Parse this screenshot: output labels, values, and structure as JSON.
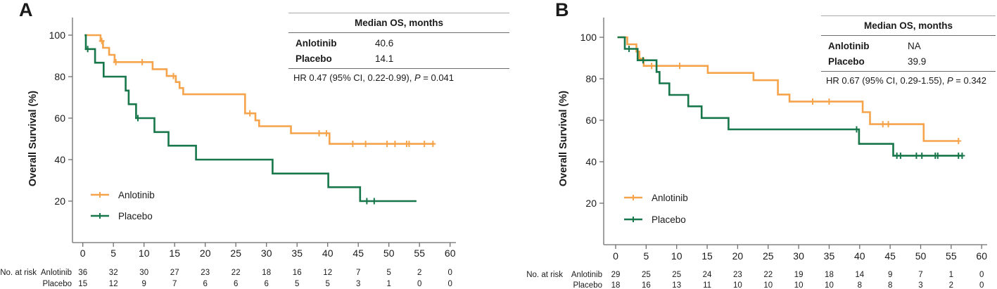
{
  "chart_data": [
    {
      "type": "line",
      "subtype": "kaplan-meier-step",
      "panel_label": "A",
      "xlabel": "",
      "ylabel": "Overall Survival (%)",
      "xlim": [
        0,
        60
      ],
      "ylim": [
        0,
        108
      ],
      "grid": false,
      "legend_position": "lower-left",
      "x_ticks": [
        0,
        5,
        10,
        15,
        20,
        25,
        30,
        35,
        40,
        45,
        50,
        55,
        60
      ],
      "y_ticks": [
        20,
        40,
        60,
        80,
        100
      ],
      "stats_table": {
        "header": "Median OS, months"
      },
      "hr_annotation": {
        "plain": "HR 0.47 (95% CI, 0.22-0.99), ",
        "italic": "P",
        "tail": " = 0.041"
      },
      "at_risk_label": "No. at risk",
      "series": [
        {
          "name": "Anlotinib",
          "color": "#F5A44C",
          "median_os_months": "40.6",
          "step_points": [
            [
              0.3,
              100
            ],
            [
              2.9,
              100
            ],
            [
              2.9,
              97.2
            ],
            [
              3.3,
              97.2
            ],
            [
              3.3,
              93.9
            ],
            [
              4.3,
              93.9
            ],
            [
              4.3,
              90.5
            ],
            [
              5.2,
              90.5
            ],
            [
              5.2,
              87
            ],
            [
              11.4,
              87
            ],
            [
              11.4,
              83.6
            ],
            [
              13.7,
              83.6
            ],
            [
              13.7,
              80.3
            ],
            [
              15.2,
              80.3
            ],
            [
              15.2,
              77.4
            ],
            [
              15.8,
              77.4
            ],
            [
              15.8,
              74.5
            ],
            [
              16.4,
              74.5
            ],
            [
              16.4,
              71.5
            ],
            [
              26.5,
              71.5
            ],
            [
              26.5,
              62.3
            ],
            [
              28.2,
              62.3
            ],
            [
              28.2,
              58.9
            ],
            [
              28.8,
              58.9
            ],
            [
              28.8,
              56.1
            ],
            [
              34,
              56.1
            ],
            [
              34,
              52.7
            ],
            [
              40.3,
              52.7
            ],
            [
              40.3,
              47.6
            ],
            [
              57.4,
              47.6
            ]
          ],
          "censor_marks": [
            [
              3.1,
              97.2
            ],
            [
              5.4,
              87
            ],
            [
              9.7,
              87
            ],
            [
              14.8,
              80.3
            ],
            [
              27.3,
              62.3
            ],
            [
              38.6,
              52.7
            ],
            [
              39.8,
              52.7
            ],
            [
              44.1,
              47.6
            ],
            [
              46.2,
              47.6
            ],
            [
              49.7,
              47.6
            ],
            [
              51,
              47.6
            ],
            [
              52.9,
              47.6
            ],
            [
              53.3,
              47.6
            ],
            [
              55.8,
              47.6
            ],
            [
              57.2,
              47.6
            ]
          ],
          "at_risk_counts": [
            36,
            32,
            30,
            27,
            23,
            22,
            18,
            16,
            12,
            7,
            5,
            2,
            0
          ]
        },
        {
          "name": "Placebo",
          "color": "#17764A",
          "median_os_months": "14.1",
          "step_points": [
            [
              0.3,
              100
            ],
            [
              0.5,
              100
            ],
            [
              0.5,
              93.3
            ],
            [
              2,
              93.3
            ],
            [
              2,
              86.7
            ],
            [
              3.4,
              86.7
            ],
            [
              3.4,
              80
            ],
            [
              7,
              80
            ],
            [
              7,
              73.3
            ],
            [
              7.5,
              73.3
            ],
            [
              7.5,
              66.7
            ],
            [
              8.7,
              66.7
            ],
            [
              8.7,
              60
            ],
            [
              11.7,
              60
            ],
            [
              11.7,
              53.3
            ],
            [
              14,
              53.3
            ],
            [
              14,
              46.7
            ],
            [
              18.5,
              46.7
            ],
            [
              18.5,
              40
            ],
            [
              31,
              40
            ],
            [
              31,
              33.3
            ],
            [
              40.1,
              33.3
            ],
            [
              40.1,
              26.7
            ],
            [
              45.3,
              26.7
            ],
            [
              45.3,
              20
            ],
            [
              54.5,
              20
            ]
          ],
          "censor_marks": [
            [
              0.8,
              93.3
            ],
            [
              9,
              60
            ],
            [
              46.4,
              20
            ],
            [
              47.6,
              20
            ]
          ],
          "at_risk_counts": [
            15,
            12,
            9,
            7,
            6,
            6,
            6,
            5,
            5,
            3,
            1,
            0,
            0
          ]
        }
      ]
    },
    {
      "type": "line",
      "subtype": "kaplan-meier-step",
      "panel_label": "B",
      "xlabel": "",
      "ylabel": "Overall Survival (%)",
      "xlim": [
        0,
        60
      ],
      "ylim": [
        0,
        108
      ],
      "grid": false,
      "legend_position": "lower-left",
      "x_ticks": [
        0,
        5,
        10,
        15,
        20,
        25,
        30,
        35,
        40,
        45,
        50,
        55,
        60
      ],
      "y_ticks": [
        20,
        40,
        60,
        80,
        100
      ],
      "stats_table": {
        "header": "Median OS, months"
      },
      "hr_annotation": {
        "plain": "HR 0.67 (95% CI, 0.29-1.55), ",
        "italic": "P",
        "tail": " = 0.342"
      },
      "at_risk_label": "No. at risk",
      "series": [
        {
          "name": "Anlotinib",
          "color": "#F5A44C",
          "median_os_months": "NA",
          "step_points": [
            [
              0.3,
              100
            ],
            [
              1.9,
              100
            ],
            [
              1.9,
              96.6
            ],
            [
              3.4,
              96.6
            ],
            [
              3.4,
              93.1
            ],
            [
              3.9,
              93.1
            ],
            [
              3.9,
              89.7
            ],
            [
              4.6,
              89.7
            ],
            [
              4.6,
              86.2
            ],
            [
              15.1,
              86.2
            ],
            [
              15.1,
              82.8
            ],
            [
              22.6,
              82.8
            ],
            [
              22.6,
              79.3
            ],
            [
              26.6,
              79.3
            ],
            [
              26.6,
              72.4
            ],
            [
              28.5,
              72.4
            ],
            [
              28.5,
              69
            ],
            [
              40.5,
              69
            ],
            [
              40.5,
              63.9
            ],
            [
              41.7,
              63.9
            ],
            [
              41.7,
              58.1
            ],
            [
              50.5,
              58.1
            ],
            [
              50.5,
              50
            ],
            [
              56.3,
              50
            ]
          ],
          "censor_marks": [
            [
              5.9,
              86.2
            ],
            [
              10.5,
              86.2
            ],
            [
              32.3,
              69
            ],
            [
              35,
              69
            ],
            [
              43.8,
              58.1
            ],
            [
              44.7,
              58.1
            ],
            [
              56.2,
              50
            ]
          ],
          "at_risk_counts": [
            29,
            25,
            25,
            24,
            23,
            22,
            19,
            18,
            14,
            9,
            7,
            1,
            0
          ]
        },
        {
          "name": "Placebo",
          "color": "#17764A",
          "median_os_months": "39.9",
          "step_points": [
            [
              0.3,
              100
            ],
            [
              1.5,
              100
            ],
            [
              1.5,
              94.4
            ],
            [
              3.6,
              94.4
            ],
            [
              3.6,
              88.9
            ],
            [
              6.7,
              88.9
            ],
            [
              6.7,
              83.3
            ],
            [
              7.2,
              83.3
            ],
            [
              7.2,
              77.8
            ],
            [
              8.8,
              77.8
            ],
            [
              8.8,
              72.2
            ],
            [
              11.9,
              72.2
            ],
            [
              11.9,
              66.7
            ],
            [
              14.1,
              66.7
            ],
            [
              14.1,
              61.1
            ],
            [
              18.5,
              61.1
            ],
            [
              18.5,
              55.6
            ],
            [
              39.9,
              55.6
            ],
            [
              39.9,
              48.6
            ],
            [
              45.5,
              48.6
            ],
            [
              45.5,
              42.9
            ],
            [
              56.9,
              42.9
            ]
          ],
          "censor_marks": [
            [
              2.2,
              94.4
            ],
            [
              4.5,
              88.9
            ],
            [
              39.5,
              55.6
            ],
            [
              46.1,
              42.9
            ],
            [
              46.7,
              42.9
            ],
            [
              49.3,
              42.9
            ],
            [
              50.2,
              42.9
            ],
            [
              52.4,
              42.9
            ],
            [
              52.8,
              42.9
            ],
            [
              56.2,
              42.9
            ],
            [
              56.8,
              42.9
            ]
          ],
          "at_risk_counts": [
            18,
            16,
            13,
            11,
            10,
            10,
            10,
            10,
            8,
            8,
            3,
            2,
            0
          ]
        }
      ]
    }
  ]
}
